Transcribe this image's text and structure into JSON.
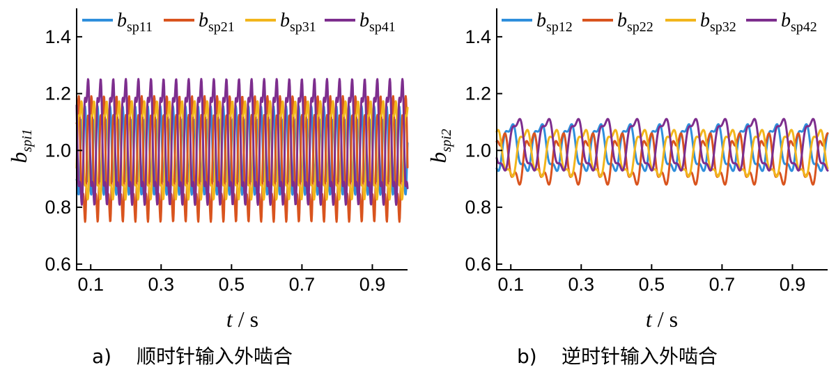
{
  "chart_data": [
    {
      "type": "line",
      "panel_id": "a)",
      "caption_letter": "a)",
      "caption_text": "顺时针输入外啮合",
      "xlabel": "t",
      "xlabel_unit": "s",
      "ylabel_main": "b",
      "ylabel_sub": "spi1",
      "xlim": [
        0.06,
        1.0
      ],
      "ylim": [
        0.58,
        1.5
      ],
      "x_ticks": [
        0.1,
        0.3,
        0.5,
        0.7,
        0.9
      ],
      "x_tick_labels": [
        "0.1",
        "0.3",
        "0.5",
        "0.7",
        "0.9"
      ],
      "y_ticks": [
        0.6,
        0.8,
        1.0,
        1.2,
        1.4
      ],
      "y_tick_labels": [
        "0.6",
        "0.8",
        "1.0",
        "1.2",
        "1.4"
      ],
      "legend_position": "top",
      "series": [
        {
          "name_main": "b",
          "name_sub": "sp11",
          "color": "#2f8fdc",
          "mean": 1.0,
          "amplitude": 0.15,
          "frequency": 28.0,
          "phase": 0.0,
          "harmonic": 0.04
        },
        {
          "name_main": "b",
          "name_sub": "sp21",
          "color": "#d9541e",
          "mean": 0.97,
          "amplitude": 0.2,
          "frequency": 28.0,
          "phase": 3.1,
          "harmonic": 0.07
        },
        {
          "name_main": "b",
          "name_sub": "sp31",
          "color": "#f2b61c",
          "mean": 1.0,
          "amplitude": 0.17,
          "frequency": 28.0,
          "phase": 1.7,
          "harmonic": 0.04
        },
        {
          "name_main": "b",
          "name_sub": "sp41",
          "color": "#7d2e8e",
          "mean": 1.03,
          "amplitude": 0.21,
          "frequency": 28.0,
          "phase": 4.7,
          "harmonic": 0.06
        }
      ]
    },
    {
      "type": "line",
      "panel_id": "b)",
      "caption_letter": "b)",
      "caption_text": "逆时针输入外啮合",
      "xlabel": "t",
      "xlabel_unit": "s",
      "ylabel_main": "b",
      "ylabel_sub": "spi2",
      "xlim": [
        0.06,
        1.0
      ],
      "ylim": [
        0.58,
        1.5
      ],
      "x_ticks": [
        0.1,
        0.3,
        0.5,
        0.7,
        0.9
      ],
      "x_tick_labels": [
        "0.1",
        "0.3",
        "0.5",
        "0.7",
        "0.9"
      ],
      "y_ticks": [
        0.6,
        0.8,
        1.0,
        1.2,
        1.4
      ],
      "y_tick_labels": [
        "0.6",
        "0.8",
        "1.0",
        "1.2",
        "1.4"
      ],
      "legend_position": "top",
      "series": [
        {
          "name_main": "b",
          "name_sub": "sp12",
          "color": "#2f8fdc",
          "mean": 1.01,
          "amplitude": 0.08,
          "frequency": 12.0,
          "phase": 0.4,
          "harmonic": 0.02
        },
        {
          "name_main": "b",
          "name_sub": "sp22",
          "color": "#d9541e",
          "mean": 0.97,
          "amplitude": 0.08,
          "frequency": 12.0,
          "phase": 2.2,
          "harmonic": 0.03
        },
        {
          "name_main": "b",
          "name_sub": "sp32",
          "color": "#f2b61c",
          "mean": 0.99,
          "amplitude": 0.08,
          "frequency": 12.0,
          "phase": 3.6,
          "harmonic": 0.02
        },
        {
          "name_main": "b",
          "name_sub": "sp42",
          "color": "#7d2e8e",
          "mean": 1.02,
          "amplitude": 0.09,
          "frequency": 12.0,
          "phase": 5.2,
          "harmonic": 0.02
        }
      ]
    }
  ]
}
